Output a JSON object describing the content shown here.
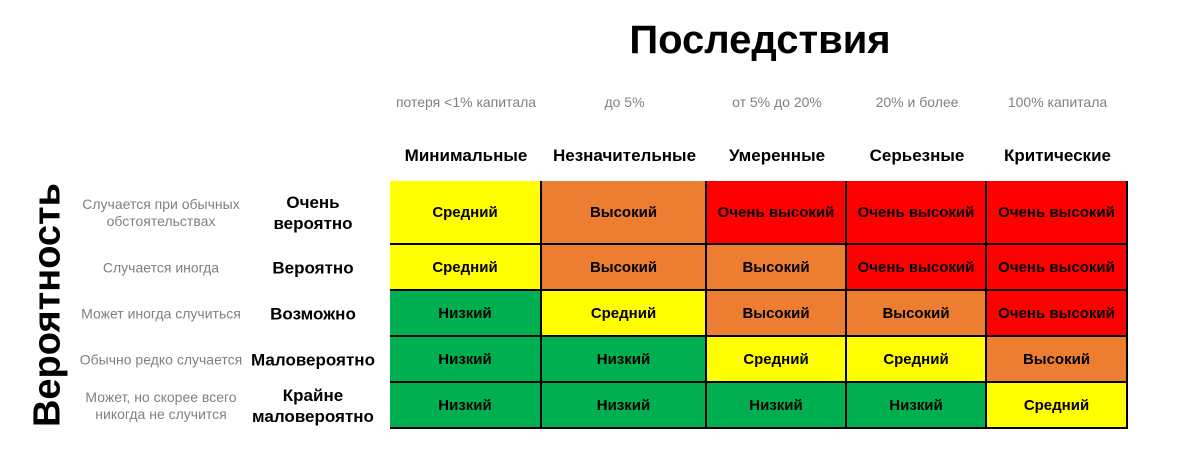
{
  "title": "Последствия",
  "y_title": "Вероятность",
  "consequences": [
    {
      "desc": "потеря <1% капитала",
      "label": "Минимальные"
    },
    {
      "desc": "до 5%",
      "label": "Незначительные"
    },
    {
      "desc": "от 5% до 20%",
      "label": "Умеренные"
    },
    {
      "desc": "20% и более",
      "label": "Серьезные"
    },
    {
      "desc": "100% капитала",
      "label": "Критические"
    }
  ],
  "likelihood": [
    {
      "desc": "Случается при обычных обстоятельствах",
      "label": "Очень вероятно"
    },
    {
      "desc": "Случается иногда",
      "label": "Вероятно"
    },
    {
      "desc": "Может иногда случиться",
      "label": "Возможно"
    },
    {
      "desc": "Обычно редко случается",
      "label": "Маловероятно"
    },
    {
      "desc": "Может, но скорее всего никогда не случится",
      "label": "Крайне маловероятно"
    }
  ],
  "levels": {
    "low": {
      "label": "Низкий",
      "color": "#00b050"
    },
    "medium": {
      "label": "Средний",
      "color": "#ffff00"
    },
    "high": {
      "label": "Высокий",
      "color": "#ed7d31"
    },
    "very_high": {
      "label": "Очень высокий",
      "color": "#ff0000"
    }
  },
  "matrix": [
    [
      "medium",
      "high",
      "very_high",
      "very_high",
      "very_high"
    ],
    [
      "medium",
      "high",
      "high",
      "very_high",
      "very_high"
    ],
    [
      "low",
      "medium",
      "high",
      "high",
      "very_high"
    ],
    [
      "low",
      "low",
      "medium",
      "medium",
      "high"
    ],
    [
      "low",
      "low",
      "low",
      "low",
      "medium"
    ]
  ]
}
